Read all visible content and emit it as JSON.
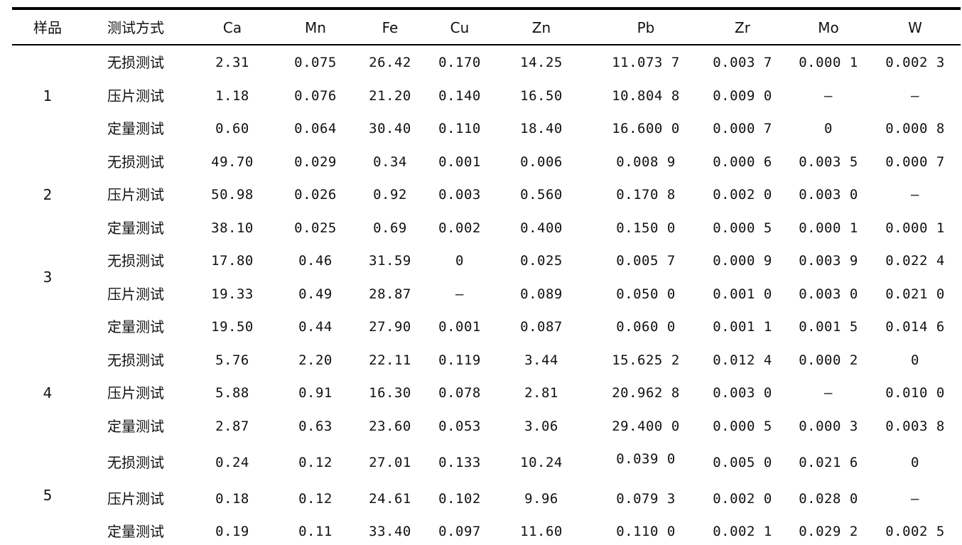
{
  "table": {
    "headers": [
      "样品",
      "测试方式",
      "Ca",
      "Mn",
      "Fe",
      "Cu",
      "Zn",
      "Pb",
      "Zr",
      "Mo",
      "W"
    ],
    "samples": [
      {
        "label": "1",
        "rows": [
          {
            "method": "无损测试",
            "values": [
              "2.31",
              "0.075",
              "26.42",
              "0.170",
              "14.25",
              "11.073 7",
              "0.003 7",
              "0.000 1",
              "0.002 3"
            ]
          },
          {
            "method": "压片测试",
            "values": [
              "1.18",
              "0.076",
              "21.20",
              "0.140",
              "16.50",
              "10.804 8",
              "0.009 0",
              "—",
              "—"
            ]
          },
          {
            "method": "定量测试",
            "values": [
              "0.60",
              "0.064",
              "30.40",
              "0.110",
              "18.40",
              "16.600 0",
              "0.000 7",
              "0",
              "0.000 8"
            ]
          }
        ]
      },
      {
        "label": "2",
        "rows": [
          {
            "method": "无损测试",
            "values": [
              "49.70",
              "0.029",
              "0.34",
              "0.001",
              "0.006",
              "0.008 9",
              "0.000 6",
              "0.003 5",
              "0.000 7"
            ]
          },
          {
            "method": "压片测试",
            "values": [
              "50.98",
              "0.026",
              "0.92",
              "0.003",
              "0.560",
              "0.170 8",
              "0.002 0",
              "0.003 0",
              "—"
            ]
          },
          {
            "method": "定量测试",
            "values": [
              "38.10",
              "0.025",
              "0.69",
              "0.002",
              "0.400",
              "0.150 0",
              "0.000 5",
              "0.000 1",
              "0.000 1"
            ]
          }
        ]
      },
      {
        "label": "3",
        "rows": [
          {
            "method": "无损测试",
            "values": [
              "17.80",
              "0.46",
              "31.59",
              "0",
              "0.025",
              "0.005 7",
              "0.000 9",
              "0.003 9",
              "0.022 4"
            ]
          },
          {
            "method": "压片测试",
            "values": [
              "19.33",
              "0.49",
              "28.87",
              "—",
              "0.089",
              "0.050 0",
              "0.001 0",
              "0.003 0",
              "0.021 0"
            ]
          },
          {
            "method": "定量测试",
            "values": [
              "19.50",
              "0.44",
              "27.90",
              "0.001",
              "0.087",
              "0.060 0",
              "0.001 1",
              "0.001 5",
              "0.014 6"
            ]
          }
        ]
      },
      {
        "label": "4",
        "rows": [
          {
            "method": "无损测试",
            "values": [
              "5.76",
              "2.20",
              "22.11",
              "0.119",
              "3.44",
              "15.625 2",
              "0.012 4",
              "0.000 2",
              "0"
            ]
          },
          {
            "method": "压片测试",
            "values": [
              "5.88",
              "0.91",
              "16.30",
              "0.078",
              "2.81",
              "20.962 8",
              "0.003 0",
              "—",
              "0.010 0"
            ]
          },
          {
            "method": "定量测试",
            "values": [
              "2.87",
              "0.63",
              "23.60",
              "0.053",
              "3.06",
              "29.400 0",
              "0.000 5",
              "0.000 3",
              "0.003 8"
            ]
          }
        ]
      },
      {
        "label": "5",
        "rows": [
          {
            "method": "无损测试",
            "values": [
              "0.24",
              "0.12",
              "27.01",
              "0.133",
              "10.24",
              "0.039 0",
              "0.005 0",
              "0.021 6",
              "0"
            ]
          },
          {
            "method": "压片测试",
            "values": [
              "0.18",
              "0.12",
              "24.61",
              "0.102",
              "9.96",
              "0.079 3",
              "0.002 0",
              "0.028 0",
              "—"
            ]
          },
          {
            "method": "定量测试",
            "values": [
              "0.19",
              "0.11",
              "33.40",
              "0.097",
              "11.60",
              "0.110 0",
              "0.002 1",
              "0.029 2",
              "0.002 5"
            ]
          }
        ]
      }
    ]
  }
}
